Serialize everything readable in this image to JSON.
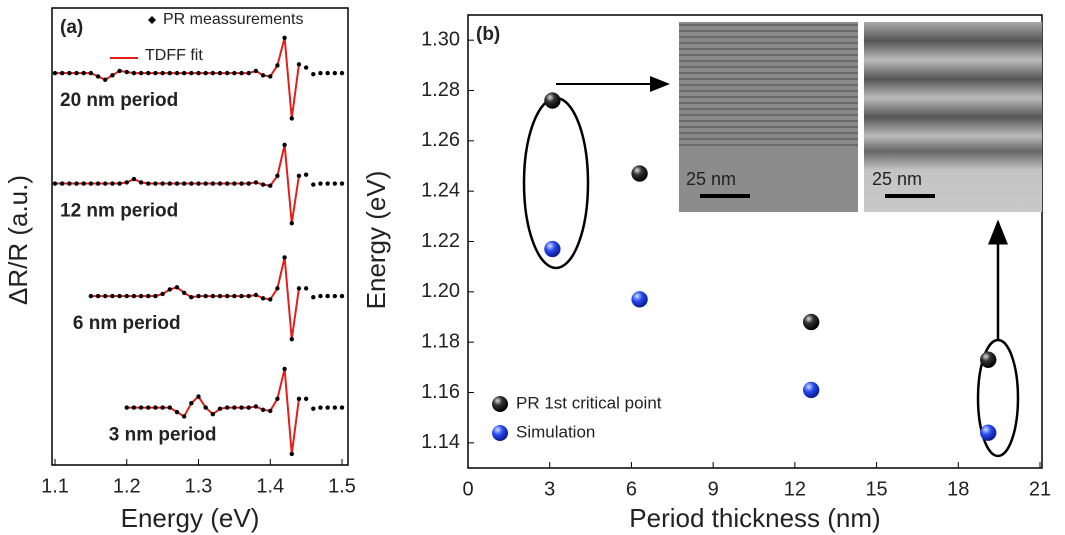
{
  "chart_data": [
    {
      "type": "spectra",
      "panel_label": "(a)",
      "x_label": "Energy (eV)",
      "y_label": "ΔR/R (a.u.)",
      "xlim": [
        1.1,
        1.5
      ],
      "xticks": [
        1.1,
        1.2,
        1.3,
        1.4,
        1.5
      ],
      "ylim": [
        0,
        4.14
      ],
      "legend": [
        {
          "name": "PR meassurements",
          "color": "#000000"
        },
        {
          "name": "TDFF fit",
          "color": "#e0201b"
        }
      ],
      "x": [
        1.1,
        1.11,
        1.12,
        1.13,
        1.14,
        1.15,
        1.16,
        1.17,
        1.18,
        1.19,
        1.2,
        1.21,
        1.22,
        1.23,
        1.24,
        1.25,
        1.26,
        1.27,
        1.28,
        1.29,
        1.3,
        1.31,
        1.32,
        1.33,
        1.34,
        1.35,
        1.36,
        1.37,
        1.38,
        1.39,
        1.4,
        1.41,
        1.42,
        1.43,
        1.44,
        1.45,
        1.46,
        1.47,
        1.48,
        1.49,
        1.5
      ],
      "spectra": [
        {
          "label": "20 nm period",
          "measured": [
            3.55,
            3.55,
            3.55,
            3.55,
            3.55,
            3.55,
            3.52,
            3.49,
            3.53,
            3.57,
            3.56,
            3.55,
            3.55,
            3.55,
            3.55,
            3.55,
            3.55,
            3.55,
            3.55,
            3.55,
            3.55,
            3.55,
            3.55,
            3.55,
            3.55,
            3.55,
            3.55,
            3.55,
            3.57,
            3.53,
            3.52,
            3.62,
            3.87,
            3.14,
            3.63,
            3.6,
            3.54,
            3.55,
            3.55,
            3.55,
            3.55
          ],
          "fit": [
            3.55,
            3.55,
            3.55,
            3.55,
            3.55,
            3.55,
            3.52,
            3.49,
            3.53,
            3.57,
            3.56,
            3.55,
            3.55,
            3.55,
            3.55,
            3.55,
            3.55,
            3.55,
            3.55,
            3.55,
            3.55,
            3.55,
            3.55,
            3.55,
            3.55,
            3.55,
            3.55,
            3.55,
            3.57,
            3.53,
            3.52,
            3.62,
            3.87,
            3.14,
            3.63,
            null,
            null,
            null,
            null,
            null,
            null
          ]
        },
        {
          "label": "12 nm period",
          "measured": [
            2.55,
            2.55,
            2.55,
            2.55,
            2.55,
            2.55,
            2.55,
            2.55,
            2.55,
            2.55,
            2.56,
            2.59,
            2.56,
            2.55,
            2.55,
            2.55,
            2.55,
            2.55,
            2.55,
            2.55,
            2.55,
            2.55,
            2.55,
            2.55,
            2.55,
            2.55,
            2.55,
            2.55,
            2.56,
            2.54,
            2.53,
            2.62,
            2.9,
            2.19,
            2.62,
            2.63,
            2.54,
            2.55,
            2.55,
            2.55,
            2.55
          ],
          "fit": [
            2.55,
            2.55,
            2.55,
            2.55,
            2.55,
            2.55,
            2.55,
            2.55,
            2.55,
            2.55,
            2.56,
            2.59,
            2.56,
            2.55,
            2.55,
            2.55,
            2.55,
            2.55,
            2.55,
            2.55,
            2.55,
            2.55,
            2.55,
            2.55,
            2.55,
            2.55,
            2.55,
            2.55,
            2.56,
            2.54,
            2.53,
            2.62,
            2.9,
            2.19,
            2.62,
            null,
            null,
            null,
            null,
            null,
            null
          ]
        },
        {
          "label": "6 nm period",
          "measured": [
            null,
            null,
            null,
            null,
            null,
            1.53,
            1.53,
            1.53,
            1.53,
            1.53,
            1.53,
            1.53,
            1.53,
            1.53,
            1.53,
            1.55,
            1.59,
            1.61,
            1.56,
            1.52,
            1.53,
            1.53,
            1.53,
            1.53,
            1.53,
            1.53,
            1.53,
            1.53,
            1.54,
            1.51,
            1.5,
            1.6,
            1.88,
            1.14,
            1.6,
            1.6,
            1.52,
            1.53,
            1.53,
            1.53,
            1.53
          ],
          "fit": [
            null,
            null,
            null,
            null,
            null,
            1.53,
            1.53,
            1.53,
            1.53,
            1.53,
            1.53,
            1.53,
            1.53,
            1.53,
            1.53,
            1.55,
            1.59,
            1.61,
            1.56,
            1.52,
            1.53,
            1.53,
            1.53,
            1.53,
            1.53,
            1.53,
            1.53,
            1.53,
            1.54,
            1.51,
            1.5,
            1.6,
            1.88,
            1.14,
            1.6,
            null,
            null,
            null,
            null,
            null,
            null
          ]
        },
        {
          "label": "3 nm period",
          "measured": [
            null,
            null,
            null,
            null,
            null,
            null,
            null,
            null,
            null,
            null,
            0.52,
            0.52,
            0.52,
            0.52,
            0.52,
            0.52,
            0.52,
            0.48,
            0.44,
            0.56,
            0.62,
            0.52,
            0.46,
            0.51,
            0.52,
            0.52,
            0.52,
            0.52,
            0.53,
            0.5,
            0.49,
            0.6,
            0.87,
            0.1,
            0.6,
            0.6,
            0.51,
            0.52,
            0.52,
            0.52,
            0.52
          ],
          "fit": [
            null,
            null,
            null,
            null,
            null,
            null,
            null,
            null,
            null,
            null,
            0.52,
            0.52,
            0.52,
            0.52,
            0.52,
            0.52,
            0.52,
            0.48,
            0.44,
            0.56,
            0.62,
            0.52,
            0.46,
            0.51,
            0.52,
            0.52,
            0.52,
            0.52,
            0.53,
            0.5,
            0.49,
            0.6,
            0.87,
            0.1,
            0.6,
            null,
            null,
            null,
            null,
            null,
            null
          ]
        }
      ]
    },
    {
      "type": "scatter",
      "panel_label": "(b)",
      "x_label": "Period thickness (nm)",
      "y_label": "Energy (eV)",
      "xlim": [
        0,
        21
      ],
      "xticks": [
        0,
        3,
        6,
        9,
        12,
        15,
        18,
        21
      ],
      "ylim": [
        1.13,
        1.31
      ],
      "yticks": [
        1.14,
        1.16,
        1.18,
        {
          "value": 1.2,
          "label": "1.20"
        },
        1.22,
        1.24,
        1.26,
        1.28,
        {
          "value": 1.3,
          "label": "1.30"
        }
      ],
      "series": [
        {
          "name": "PR 1st critical point",
          "color": "#1a1a1a",
          "x": [
            3.1,
            6.3,
            12.6,
            19.1
          ],
          "values": [
            1.276,
            1.247,
            1.188,
            1.173
          ]
        },
        {
          "name": "Simulation",
          "color": "#1f3fd6",
          "x": [
            3.1,
            6.3,
            12.6,
            19.1
          ],
          "values": [
            1.217,
            1.197,
            1.161,
            1.144
          ]
        }
      ],
      "annotations": [
        "25 nm",
        "25 nm"
      ]
    }
  ]
}
